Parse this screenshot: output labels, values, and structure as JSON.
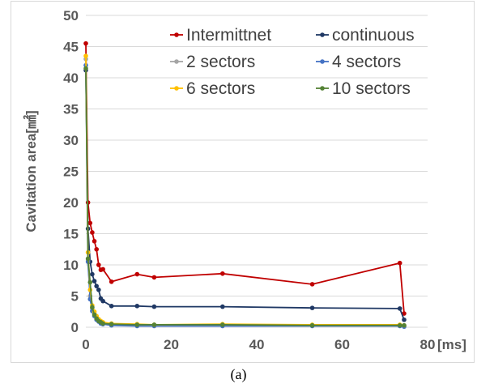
{
  "caption": "(a)",
  "chart_data": {
    "type": "line",
    "xlabel": "[ms]",
    "ylabel": "Cavitation area[㎟]",
    "xlim": [
      0,
      80
    ],
    "ylim": [
      0,
      50
    ],
    "x_ticks": [
      0,
      20,
      40,
      60,
      80
    ],
    "y_ticks": [
      0,
      5,
      10,
      15,
      20,
      25,
      30,
      35,
      40,
      45,
      50
    ],
    "grid": "horizontal major",
    "legend_position": "top-right",
    "series": [
      {
        "name": "Intermittnet",
        "color": "#c00000",
        "x": [
          0,
          0.5,
          1,
          1.5,
          2,
          2.5,
          3,
          3.5,
          4,
          6,
          12,
          16,
          32,
          53,
          73.5,
          74.5
        ],
        "y": [
          45.5,
          20,
          16.7,
          15.2,
          13.8,
          12.5,
          10,
          9.2,
          9.3,
          7.3,
          8.5,
          8,
          8.6,
          6.9,
          10.3,
          2.2
        ]
      },
      {
        "name": "continuous",
        "color": "#1f3864",
        "x": [
          0,
          0.5,
          1,
          1.5,
          2,
          2.5,
          3,
          3.5,
          4,
          6,
          12,
          16,
          32,
          53,
          73.5,
          74.5
        ],
        "y": [
          41.2,
          15.8,
          10.5,
          8.5,
          7.4,
          6.6,
          6,
          4.6,
          4.2,
          3.4,
          3.4,
          3.3,
          3.3,
          3.1,
          3,
          1.2
        ]
      },
      {
        "name": "2 sectors",
        "color": "#a5a5a5",
        "x": [
          0,
          0.5,
          1,
          1.5,
          2,
          2.5,
          3,
          3.5,
          4,
          6,
          12,
          16,
          32,
          53,
          73.5,
          74.5
        ],
        "y": [
          43,
          10.8,
          5,
          3,
          2.2,
          1.6,
          1.2,
          0.9,
          0.7,
          0.5,
          0.4,
          0.4,
          0.4,
          0.3,
          0.3,
          0.2
        ]
      },
      {
        "name": "4 sectors",
        "color": "#4472c4",
        "x": [
          0,
          0.5,
          1,
          1.5,
          2,
          2.5,
          3,
          3.5,
          4,
          6,
          12,
          16,
          32,
          53,
          73.5,
          74.5
        ],
        "y": [
          42,
          10.5,
          4.5,
          2.6,
          1.8,
          1.2,
          0.9,
          0.6,
          0.5,
          0.3,
          0.2,
          0.2,
          0.2,
          0.2,
          0.2,
          0.1
        ]
      },
      {
        "name": "6 sectors",
        "color": "#ffc000",
        "x": [
          0,
          0.5,
          1,
          1.5,
          2,
          2.5,
          3,
          3.5,
          4,
          6,
          12,
          16,
          32,
          53,
          73.5,
          74.5
        ],
        "y": [
          43.5,
          12,
          6,
          3.5,
          2.5,
          1.8,
          1.3,
          1,
          0.8,
          0.6,
          0.5,
          0.4,
          0.5,
          0.4,
          0.4,
          0.3
        ]
      },
      {
        "name": "10 sectors",
        "color": "#548235",
        "x": [
          0,
          0.5,
          1,
          1.5,
          2,
          2.5,
          3,
          3.5,
          4,
          6,
          12,
          16,
          32,
          53,
          73.5,
          74.5
        ],
        "y": [
          41.5,
          11,
          7.2,
          3.2,
          2,
          1.4,
          1,
          0.8,
          0.6,
          0.5,
          0.4,
          0.4,
          0.4,
          0.3,
          0.3,
          0.3
        ]
      }
    ]
  }
}
